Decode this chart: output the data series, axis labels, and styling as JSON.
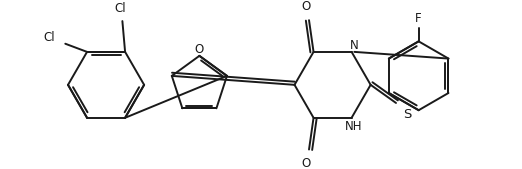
{
  "bg_color": "#ffffff",
  "line_color": "#1a1a1a",
  "line_width": 1.4,
  "font_size": 8.5,
  "figsize": [
    5.22,
    1.69
  ],
  "dpi": 100,
  "xlim": [
    0,
    522
  ],
  "ylim": [
    0,
    169
  ]
}
